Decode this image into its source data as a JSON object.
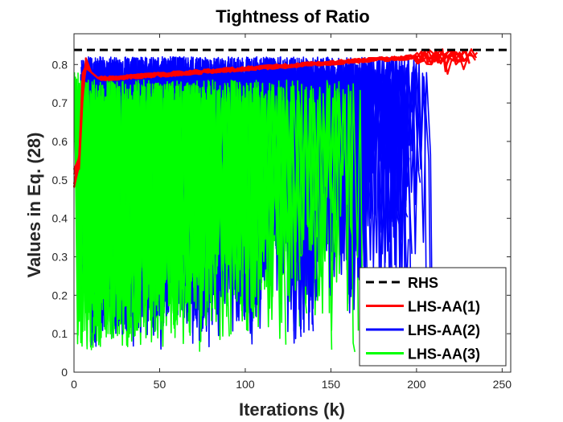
{
  "chart_data": {
    "type": "line",
    "title": "Tightness of Ratio",
    "xlabel": "Iterations (k)",
    "ylabel": "Values in Eq. (28)",
    "xlim": [
      0,
      255
    ],
    "ylim": [
      0,
      0.88
    ],
    "xticks": [
      0,
      50,
      100,
      150,
      200,
      250
    ],
    "yticks": [
      0,
      0.1,
      0.2,
      0.3,
      0.4,
      0.5,
      0.6,
      0.7,
      0.8
    ],
    "xtick_labels": [
      "0",
      "50",
      "100",
      "150",
      "200",
      "250"
    ],
    "ytick_labels": [
      "0",
      "0.1",
      "0.2",
      "0.3",
      "0.4",
      "0.5",
      "0.6",
      "0.7",
      "0.8"
    ],
    "legend_position": "bottom-right",
    "rhs_value": 0.838,
    "series": [
      {
        "name": "RHS",
        "color": "#000000",
        "style": "dashed",
        "x": [
          0,
          255
        ],
        "y": [
          0.838,
          0.838
        ]
      },
      {
        "name": "LHS-AA(1)",
        "color": "#ff0000",
        "style": "solid",
        "x": [
          0,
          2,
          4,
          5,
          6,
          8,
          10,
          12,
          15,
          20,
          30,
          50,
          75,
          100,
          125,
          150,
          175,
          200,
          210,
          220,
          225,
          230,
          235,
          240
        ],
        "y": [
          0.52,
          0.5,
          0.62,
          0.72,
          0.78,
          0.8,
          0.78,
          0.77,
          0.76,
          0.76,
          0.76,
          0.765,
          0.78,
          0.79,
          0.8,
          0.805,
          0.81,
          0.815,
          0.82,
          0.82,
          0.79,
          0.81,
          0.77,
          0.82
        ]
      },
      {
        "name": "LHS-AA(2)",
        "color": "#0000ff",
        "style": "solid",
        "x": [
          4,
          8,
          12,
          18,
          25,
          35,
          45,
          55,
          70,
          85,
          100,
          115,
          130,
          145,
          160,
          175,
          190,
          205,
          207,
          208
        ],
        "y": [
          0.6,
          0.82,
          0.1,
          0.78,
          0.15,
          0.8,
          0.2,
          0.82,
          0.1,
          0.8,
          0.15,
          0.82,
          0.3,
          0.82,
          0.4,
          0.8,
          0.62,
          0.8,
          0.6,
          0.28
        ]
      },
      {
        "name": "LHS-AA(3)",
        "color": "#00ff00",
        "style": "solid",
        "x": [
          0,
          3,
          6,
          10,
          15,
          20,
          25,
          30,
          40,
          50,
          60,
          75,
          90,
          105,
          120,
          135,
          150,
          160,
          165,
          170
        ],
        "y": [
          0.28,
          0.5,
          0.82,
          0.1,
          0.75,
          0.05,
          0.7,
          0.1,
          0.76,
          0.2,
          0.78,
          0.15,
          0.75,
          0.25,
          0.8,
          0.3,
          0.78,
          0.45,
          0.7,
          0.4
        ]
      }
    ]
  }
}
